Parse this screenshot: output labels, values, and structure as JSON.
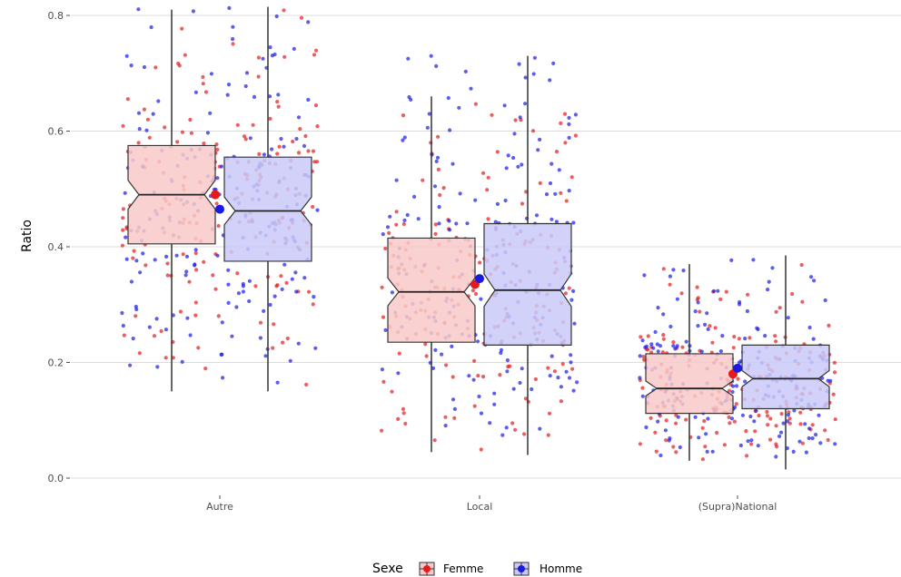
{
  "chart_data": {
    "type": "boxplot",
    "ylabel": "Ratio",
    "xlabel": "",
    "ylim": [
      0,
      0.82
    ],
    "yticks": [
      "0.0",
      "0.2",
      "0.4",
      "0.6",
      "0.8"
    ],
    "ytick_values": [
      0,
      0.2,
      0.4,
      0.6,
      0.8
    ],
    "grid": true,
    "notched": true,
    "jitter_points": true,
    "categories": [
      "Autre",
      "Local",
      "(Supra)National"
    ],
    "legend": {
      "title": "Sexe",
      "placement": "bottom",
      "entries": [
        "Femme",
        "Homme"
      ]
    },
    "series": [
      {
        "name": "Femme",
        "color": "#e41a1c",
        "fill": "#f8c9c8",
        "boxes": [
          {
            "category": "Autre",
            "min": 0.15,
            "q1": 0.405,
            "median": 0.49,
            "q3": 0.575,
            "max": 0.81,
            "mean": 0.49,
            "notch_low": 0.465,
            "notch_high": 0.515
          },
          {
            "category": "Local",
            "min": 0.045,
            "q1": 0.235,
            "median": 0.322,
            "q3": 0.415,
            "max": 0.66,
            "mean": 0.335,
            "notch_low": 0.298,
            "notch_high": 0.346
          },
          {
            "category": "(Supra)National",
            "min": 0.03,
            "q1": 0.112,
            "median": 0.155,
            "q3": 0.215,
            "max": 0.37,
            "mean": 0.18,
            "notch_low": 0.142,
            "notch_high": 0.168
          }
        ]
      },
      {
        "name": "Homme",
        "color": "#1a1ae4",
        "fill": "#c9c9f8",
        "boxes": [
          {
            "category": "Autre",
            "min": 0.15,
            "q1": 0.375,
            "median": 0.462,
            "q3": 0.555,
            "max": 0.815,
            "mean": 0.465,
            "notch_low": 0.438,
            "notch_high": 0.486
          },
          {
            "category": "Local",
            "min": 0.04,
            "q1": 0.23,
            "median": 0.325,
            "q3": 0.44,
            "max": 0.73,
            "mean": 0.345,
            "notch_low": 0.297,
            "notch_high": 0.353
          },
          {
            "category": "(Supra)National",
            "min": 0.015,
            "q1": 0.12,
            "median": 0.172,
            "q3": 0.23,
            "max": 0.385,
            "mean": 0.19,
            "notch_low": 0.158,
            "notch_high": 0.186
          }
        ]
      }
    ]
  }
}
